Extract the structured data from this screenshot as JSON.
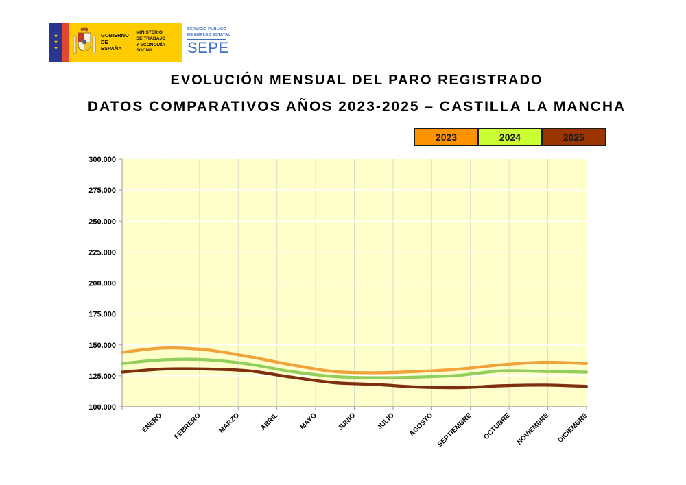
{
  "logo": {
    "gobierno_line1": "GOBIERNO",
    "gobierno_line2": "DE ESPAÑA",
    "ministerio_line1": "MINISTERIO",
    "ministerio_line2": "DE TRABAJO",
    "ministerio_line3": "Y ECONOMÍA SOCIAL",
    "sepe_small_line1": "SERVICIO PÚBLICO",
    "sepe_small_line2": "DE EMPLEO ESTATAL",
    "sepe_name": "SEPE",
    "colors": {
      "yellow": "#FFCC00",
      "blue_column": "#2A3590",
      "red_stripe": "#E2472F",
      "sepe_blue": "#3B6FC4"
    }
  },
  "header": {
    "title": "EVOLUCIÓN MENSUAL DEL PARO REGISTRADO",
    "subtitle": "DATOS COMPARATIVOS AÑOS 2023-2025 – CASTILLA LA MANCHA"
  },
  "chart_data": {
    "type": "line",
    "title": "EVOLUCIÓN MENSUAL DEL PARO REGISTRADO — DATOS COMPARATIVOS AÑOS 2023-2025 – CASTILLA LA MANCHA",
    "categories": [
      "ENERO",
      "FEBRERO",
      "MARZO",
      "ABRIL",
      "MAYO",
      "JUNIO",
      "JULIO",
      "AGOSTO",
      "SEPTIEMBRE",
      "OCTUBRE",
      "NOVIEMBRE",
      "DICIEMBRE"
    ],
    "series": [
      {
        "name": "2023",
        "color": "#F0A23C",
        "legend_color": "#FF9300",
        "values": [
          144000,
          147500,
          146000,
          140500,
          134000,
          128500,
          127500,
          128500,
          130500,
          134000,
          136000,
          135000
        ]
      },
      {
        "name": "2024",
        "color": "#92CE5C",
        "legend_color": "#CCFF33",
        "values": [
          135000,
          138000,
          138000,
          134500,
          128500,
          124500,
          123500,
          124000,
          125500,
          129000,
          128500,
          128000
        ]
      },
      {
        "name": "2025",
        "color": "#7E2F10",
        "legend_color": "#993300",
        "values": [
          128000,
          130500,
          130500,
          129000,
          124000,
          119500,
          118000,
          116000,
          115500,
          117000,
          117500,
          116500
        ]
      }
    ],
    "ylim": [
      100000,
      300000
    ],
    "ytick_step": 25000,
    "ytick_labels": [
      "300.000",
      "275.000",
      "250.000",
      "225.000",
      "200.000",
      "175.000",
      "150.000",
      "125.000",
      "100.000"
    ],
    "grid": true,
    "legend_position": "top-right",
    "plot_bg": "#FFFFCB",
    "grid_h_color": "#FFFFFF",
    "grid_v_color": "#DDDCC5",
    "axis_color": "#9A9A8C"
  }
}
